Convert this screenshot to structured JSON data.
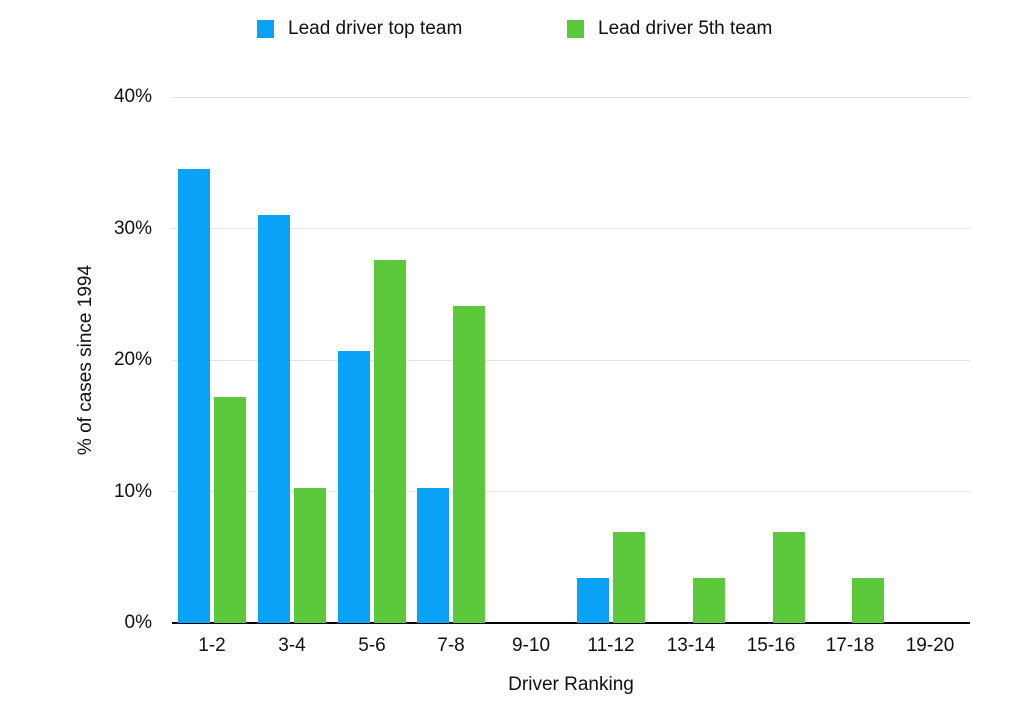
{
  "chart_data": {
    "type": "bar",
    "title": "",
    "categories": [
      "1-2",
      "3-4",
      "5-6",
      "7-8",
      "9-10",
      "11-12",
      "13-14",
      "15-16",
      "17-18",
      "19-20"
    ],
    "series": [
      {
        "name": "Lead driver top team",
        "color": "#0aa2f5",
        "values": [
          34.5,
          31.0,
          20.7,
          10.3,
          0,
          3.4,
          0,
          0,
          0,
          0
        ]
      },
      {
        "name": "Lead driver 5th team",
        "color": "#5cc93c",
        "values": [
          17.2,
          10.3,
          27.6,
          24.1,
          0,
          6.9,
          3.4,
          6.9,
          3.4,
          0
        ]
      }
    ],
    "xlabel": "Driver Ranking",
    "ylabel": "% of cases since 1994",
    "ylim": [
      0,
      40
    ],
    "yticks": [
      0,
      10,
      20,
      30,
      40
    ],
    "ytick_labels": [
      "0%",
      "10%",
      "20%",
      "30%",
      "40%"
    ],
    "grid": true,
    "legend_position": "top"
  },
  "colors": {
    "background": "#ffffff",
    "gridline": "#e2e2e2",
    "axis_line": "#000000",
    "text": "#111111"
  }
}
